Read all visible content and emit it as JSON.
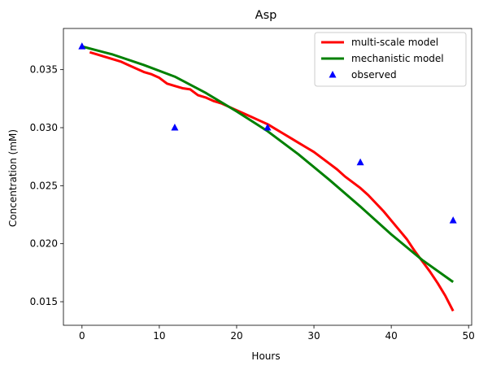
{
  "chart_data": {
    "type": "line",
    "title": "Asp",
    "xlabel": "Hours",
    "ylabel": "Concentration (mM)",
    "xlim": [
      -2.4,
      50.4
    ],
    "ylim": [
      0.01297,
      0.03855
    ],
    "x_ticks": [
      0,
      10,
      20,
      30,
      40,
      50
    ],
    "y_ticks": [
      0.015,
      0.02,
      0.025,
      0.03,
      0.035
    ],
    "x_tick_labels": [
      "0",
      "10",
      "20",
      "30",
      "40",
      "50"
    ],
    "y_tick_labels": [
      "0.015",
      "0.020",
      "0.025",
      "0.030",
      "0.035"
    ],
    "grid": false,
    "legend_position": "top-right",
    "series": [
      {
        "name": "multi-scale model",
        "type": "line",
        "color": "#ff0000",
        "x": [
          1,
          2,
          3,
          4,
          5,
          6,
          7,
          8,
          9,
          10,
          11,
          12,
          13,
          14,
          15,
          16,
          17,
          18,
          19,
          20,
          21,
          22,
          23,
          24,
          25,
          26,
          27,
          28,
          29,
          30,
          31,
          32,
          33,
          34,
          35,
          36,
          37,
          38,
          39,
          40,
          41,
          42,
          43,
          44,
          45,
          46,
          47,
          48
        ],
        "y": [
          0.0365,
          0.0363,
          0.0361,
          0.0359,
          0.0357,
          0.0354,
          0.0351,
          0.0348,
          0.0346,
          0.0343,
          0.0338,
          0.0336,
          0.0334,
          0.0333,
          0.0328,
          0.0326,
          0.0323,
          0.0321,
          0.0318,
          0.0315,
          0.0312,
          0.0309,
          0.0306,
          0.0303,
          0.0299,
          0.0295,
          0.0291,
          0.0287,
          0.0283,
          0.0279,
          0.0274,
          0.0269,
          0.0264,
          0.0258,
          0.0253,
          0.0248,
          0.0242,
          0.0235,
          0.0228,
          0.022,
          0.0212,
          0.0204,
          0.0194,
          0.0185,
          0.0176,
          0.0166,
          0.0155,
          0.0142
        ]
      },
      {
        "name": "mechanistic model",
        "type": "line",
        "color": "#008000",
        "x": [
          0,
          4,
          8,
          12,
          16,
          20,
          24,
          28,
          32,
          36,
          40,
          44,
          48
        ],
        "y": [
          0.037,
          0.0363,
          0.0354,
          0.0344,
          0.033,
          0.0314,
          0.0297,
          0.0277,
          0.0255,
          0.0232,
          0.0208,
          0.0186,
          0.0167
        ]
      },
      {
        "name": "observed",
        "type": "scatter",
        "marker": "triangle",
        "color": "#0000ff",
        "x": [
          0,
          12,
          24,
          36,
          48
        ],
        "y": [
          0.037,
          0.03,
          0.03,
          0.027,
          0.022
        ]
      }
    ]
  }
}
